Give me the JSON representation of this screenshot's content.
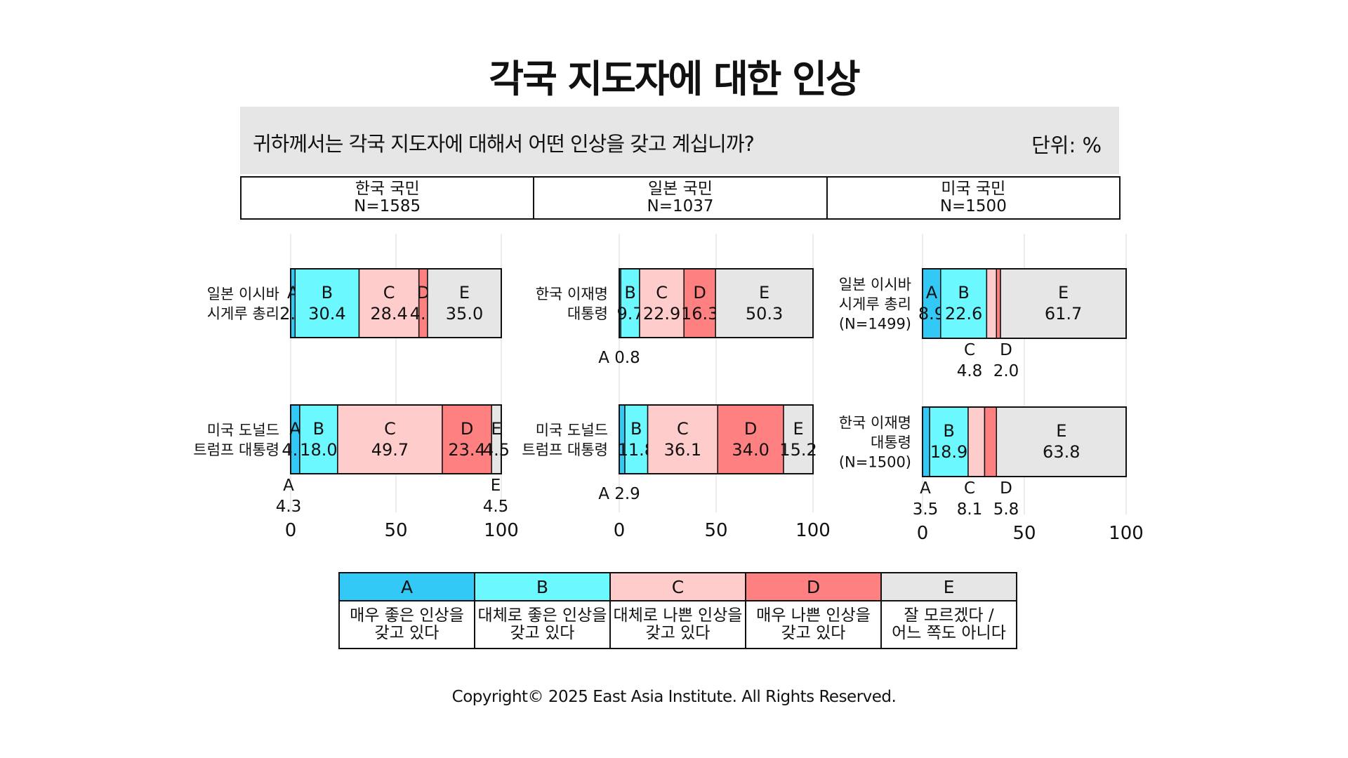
{
  "title": "각국 지도자에 대한 인상",
  "question": "귀하께서는 각국 지도자에 대해서 어떤 인상을 갖고 계십니까?",
  "unit": "단위: %",
  "groups": [
    {
      "name": "한국 국민",
      "n": "N=1585"
    },
    {
      "name": "일본 국민",
      "n": "N=1037"
    },
    {
      "name": "미국 국민",
      "n": "N=1500"
    }
  ],
  "colors": {
    "A": "#33c9f6",
    "B": "#6cf8ff",
    "C": "#ffcccc",
    "D": "#ff8080",
    "E": "#e6e6e6"
  },
  "legend": [
    {
      "key": "A",
      "label1": "매우 좋은 인상을",
      "label2": "갖고 있다"
    },
    {
      "key": "B",
      "label1": "대체로 좋은 인상을",
      "label2": "갖고 있다"
    },
    {
      "key": "C",
      "label1": "대체로 나쁜 인상을",
      "label2": "갖고 있다"
    },
    {
      "key": "D",
      "label1": "매우 나쁜 인상을",
      "label2": "갖고 있다"
    },
    {
      "key": "E",
      "label1": "잘 모르겠다 /",
      "label2": "어느 쪽도 아니다"
    }
  ],
  "copyright": "Copyright© 2025 East Asia Institute. All Rights Reserved.",
  "chart_data": [
    {
      "type": "bar",
      "stacked": true,
      "orientation": "horizontal",
      "group": "한국 국민",
      "xlim": [
        0,
        100
      ],
      "xticks": [
        0,
        50,
        100
      ],
      "segments": [
        "A",
        "B",
        "C",
        "D",
        "E"
      ],
      "rows": [
        {
          "label": [
            "일본 이시바",
            "시게루 총리"
          ],
          "values": [
            2.1,
            30.4,
            28.4,
            4.1,
            35.0
          ]
        },
        {
          "label": [
            "미국 도널드",
            "트럼프 대통령"
          ],
          "values": [
            4.3,
            18.0,
            49.7,
            23.4,
            4.5
          ]
        }
      ]
    },
    {
      "type": "bar",
      "stacked": true,
      "orientation": "horizontal",
      "group": "일본 국민",
      "xlim": [
        0,
        100
      ],
      "xticks": [
        0,
        50,
        100
      ],
      "segments": [
        "A",
        "B",
        "C",
        "D",
        "E"
      ],
      "rows": [
        {
          "label": [
            "한국 이재명",
            "대통령"
          ],
          "values": [
            0.8,
            9.7,
            22.9,
            16.3,
            50.3
          ]
        },
        {
          "label": [
            "미국 도널드",
            "트럼프 대통령"
          ],
          "values": [
            2.9,
            11.8,
            36.1,
            34.0,
            15.2
          ]
        }
      ]
    },
    {
      "type": "bar",
      "stacked": true,
      "orientation": "horizontal",
      "group": "미국 국민",
      "xlim": [
        0,
        100
      ],
      "xticks": [
        0,
        50,
        100
      ],
      "segments": [
        "A",
        "B",
        "C",
        "D",
        "E"
      ],
      "rows": [
        {
          "label": [
            "일본 이시바",
            "시게루 총리",
            "(N=1499)"
          ],
          "values": [
            8.9,
            22.6,
            4.8,
            2.0,
            61.7
          ]
        },
        {
          "label": [
            "한국 이재명",
            "대통령",
            "(N=1500)"
          ],
          "values": [
            3.5,
            18.9,
            8.1,
            5.8,
            63.8
          ]
        }
      ]
    }
  ]
}
